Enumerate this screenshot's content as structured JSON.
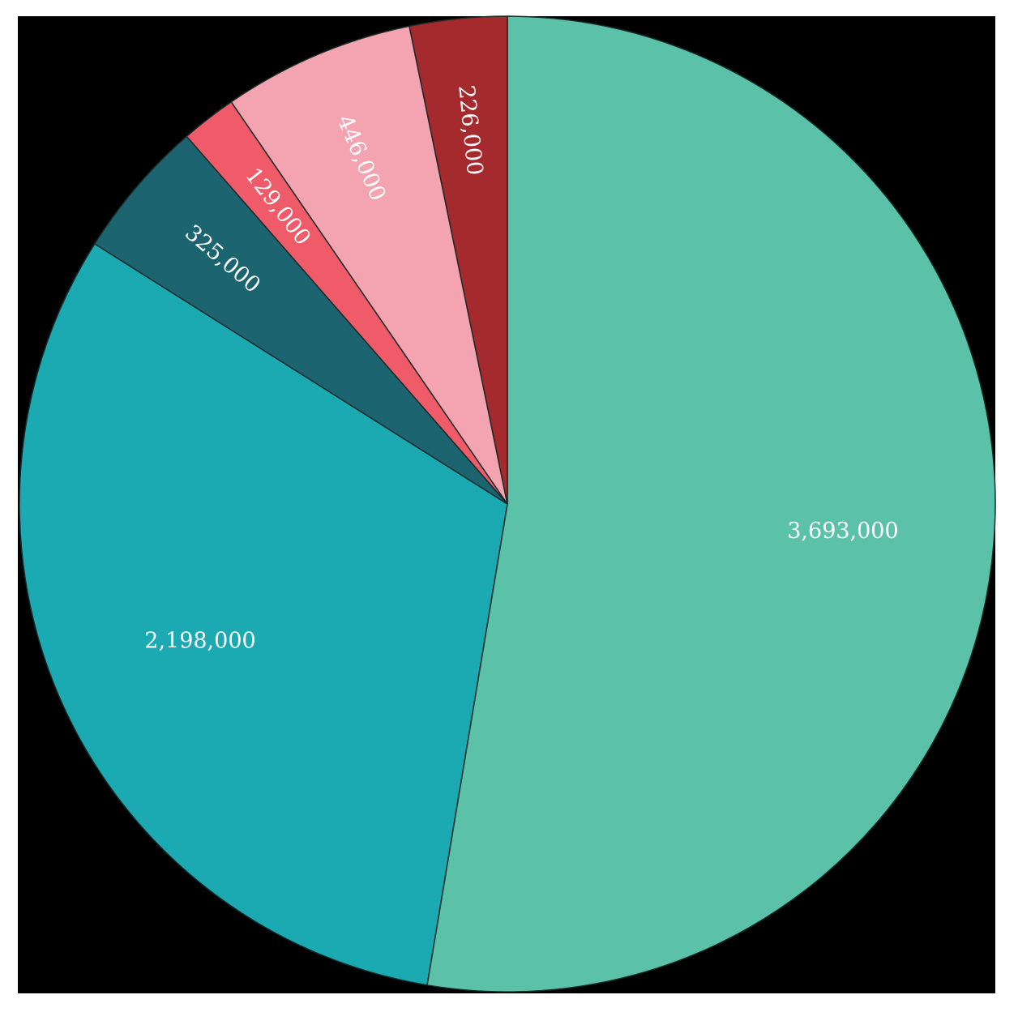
{
  "chart_data": {
    "type": "pie",
    "values": [
      3693000,
      2198000,
      325000,
      129000,
      446000,
      226000
    ],
    "value_labels": [
      "3,693,000",
      "2,198,000",
      "325,000",
      "129,000",
      "446,000",
      "226,000"
    ],
    "colors": [
      "#5cc1a9",
      "#1ba9b2",
      "#1b6470",
      "#ef5b68",
      "#f4a3b0",
      "#a52a2e"
    ]
  }
}
